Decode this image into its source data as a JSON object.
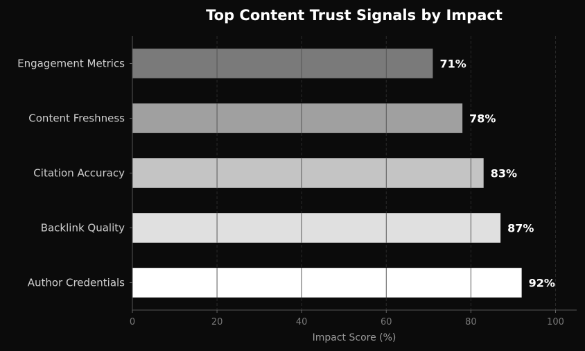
{
  "chart_data": {
    "type": "bar",
    "orientation": "horizontal",
    "title": "Top Content Trust Signals by Impact",
    "xlabel": "Impact Score (%)",
    "ylabel": "",
    "categories": [
      "Author Credentials",
      "Backlink Quality",
      "Citation Accuracy",
      "Content Freshness",
      "Engagement Metrics"
    ],
    "values": [
      92,
      87,
      83,
      78,
      71
    ],
    "value_labels": [
      "92%",
      "87%",
      "83%",
      "78%",
      "71%"
    ],
    "bar_colors": [
      "#ffffff",
      "#e0e0e0",
      "#c4c4c4",
      "#a0a0a0",
      "#7a7a7a"
    ],
    "xlim": [
      0,
      105
    ],
    "xticks": [
      0,
      20,
      40,
      60,
      80,
      100
    ],
    "xtick_labels": [
      "0",
      "20",
      "40",
      "60",
      "80",
      "100"
    ],
    "grid": "vertical",
    "background": "#0b0b0b"
  }
}
